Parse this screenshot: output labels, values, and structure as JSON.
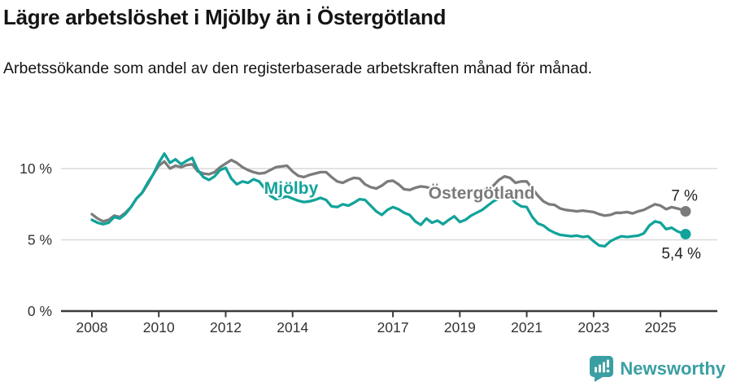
{
  "header": {
    "title": "Lägre arbetslöshet i Mjölby än i Östergötland",
    "subtitle": "Arbetssökande som andel av den registerbaserade arbetskraften månad för månad."
  },
  "footer": {
    "brand": "Newsworthy",
    "logo_icon": "newsworthy-speech-bubble-bar-chart"
  },
  "colors": {
    "teal": "#12a39a",
    "gray": "#7b7b7b",
    "axis": "#3a3a3a",
    "grid": "#dadada",
    "tick_text": "#333333",
    "value_text": "#222222",
    "brand_teal": "#3a9fa2"
  },
  "chart_data": {
    "type": "line",
    "title": "Lägre arbetslöshet i Mjölby än i Östergötland",
    "subtitle": "Arbetssökande som andel av den registerbaserade arbetskraften månad för månad.",
    "unit": "%",
    "grid": true,
    "legend_position": "inline-labels-on-lines",
    "x_start": "2008-01",
    "x_end": "2025-10",
    "step_months": 2,
    "end_month_offset": 213,
    "ylim": [
      0,
      11.7
    ],
    "yticks": [
      {
        "value": 0,
        "label": "0 %"
      },
      {
        "value": 5,
        "label": "5 %"
      },
      {
        "value": 10,
        "label": "10 %"
      }
    ],
    "xticks": [
      {
        "year": 2008,
        "label": "2008"
      },
      {
        "year": 2010,
        "label": "2010"
      },
      {
        "year": 2012,
        "label": "2012"
      },
      {
        "year": 2014,
        "label": "2014"
      },
      {
        "year": 2017,
        "label": "2017"
      },
      {
        "year": 2019,
        "label": "2019"
      },
      {
        "year": 2021,
        "label": "2021"
      },
      {
        "year": 2023,
        "label": "2023"
      },
      {
        "year": 2025,
        "label": "2025"
      }
    ],
    "series": [
      {
        "name": "Östergötland",
        "color": "#7b7b7b",
        "end_label": "7 %",
        "end_label_offset": [
          15,
          -13
        ],
        "values": [
          6.8,
          6.5,
          6.3,
          6.4,
          6.7,
          6.6,
          6.9,
          7.3,
          7.9,
          8.3,
          8.9,
          9.6,
          10.2,
          10.5,
          10.0,
          10.2,
          10.1,
          10.25,
          10.3,
          9.8,
          9.65,
          9.6,
          9.75,
          10.1,
          10.35,
          10.6,
          10.4,
          10.1,
          9.9,
          9.75,
          9.65,
          9.7,
          9.9,
          10.1,
          10.15,
          10.2,
          9.8,
          9.5,
          9.4,
          9.55,
          9.65,
          9.75,
          9.75,
          9.4,
          9.1,
          9.0,
          9.2,
          9.35,
          9.3,
          8.9,
          8.7,
          8.6,
          8.8,
          9.1,
          9.15,
          8.9,
          8.55,
          8.5,
          8.65,
          8.75,
          8.7,
          8.6,
          8.5,
          8.45,
          8.4,
          8.35,
          8.3,
          8.3,
          8.35,
          8.4,
          8.5,
          8.6,
          8.8,
          9.2,
          9.45,
          9.35,
          9.0,
          9.1,
          9.1,
          8.6,
          8.1,
          7.7,
          7.5,
          7.45,
          7.2,
          7.1,
          7.05,
          7.0,
          7.05,
          7.0,
          6.95,
          6.8,
          6.7,
          6.75,
          6.9,
          6.9,
          6.95,
          6.85,
          7.0,
          7.1,
          7.3,
          7.5,
          7.4,
          7.15,
          7.3,
          7.2,
          7.1,
          7.0
        ]
      },
      {
        "name": "Mjölby",
        "color": "#12a39a",
        "end_label": "5,4 %",
        "end_label_offset": [
          19,
          30
        ],
        "values": [
          6.4,
          6.2,
          6.1,
          6.2,
          6.6,
          6.5,
          6.8,
          7.3,
          7.9,
          8.3,
          9.0,
          9.6,
          10.4,
          11.05,
          10.4,
          10.65,
          10.3,
          10.55,
          10.75,
          9.9,
          9.4,
          9.2,
          9.45,
          9.9,
          10.05,
          9.3,
          8.9,
          9.1,
          9.0,
          9.25,
          9.1,
          8.6,
          8.1,
          7.85,
          7.95,
          8.05,
          7.9,
          7.75,
          7.65,
          7.7,
          7.8,
          7.95,
          7.8,
          7.35,
          7.3,
          7.5,
          7.4,
          7.6,
          7.85,
          7.8,
          7.4,
          7.0,
          6.75,
          7.1,
          7.3,
          7.15,
          6.9,
          6.75,
          6.3,
          6.05,
          6.5,
          6.2,
          6.35,
          6.1,
          6.4,
          6.65,
          6.25,
          6.4,
          6.7,
          6.9,
          7.1,
          7.4,
          7.7,
          7.9,
          8.1,
          8.05,
          7.6,
          7.35,
          7.3,
          6.6,
          6.15,
          6.0,
          5.7,
          5.5,
          5.35,
          5.3,
          5.25,
          5.3,
          5.2,
          5.25,
          4.9,
          4.6,
          4.55,
          4.9,
          5.1,
          5.25,
          5.2,
          5.25,
          5.3,
          5.45,
          6.0,
          6.3,
          6.2,
          5.75,
          5.85,
          5.6,
          5.45,
          5.4
        ]
      }
    ],
    "series_annotations": [
      {
        "text": "Mjölby",
        "color": "#12a39a",
        "month_offset": 71.5,
        "value": 8.62,
        "font_size": 21
      },
      {
        "text": "Östergötland",
        "color": "#7b7b7b",
        "month_offset": 139.8,
        "value": 8.28,
        "font_size": 21
      }
    ]
  }
}
